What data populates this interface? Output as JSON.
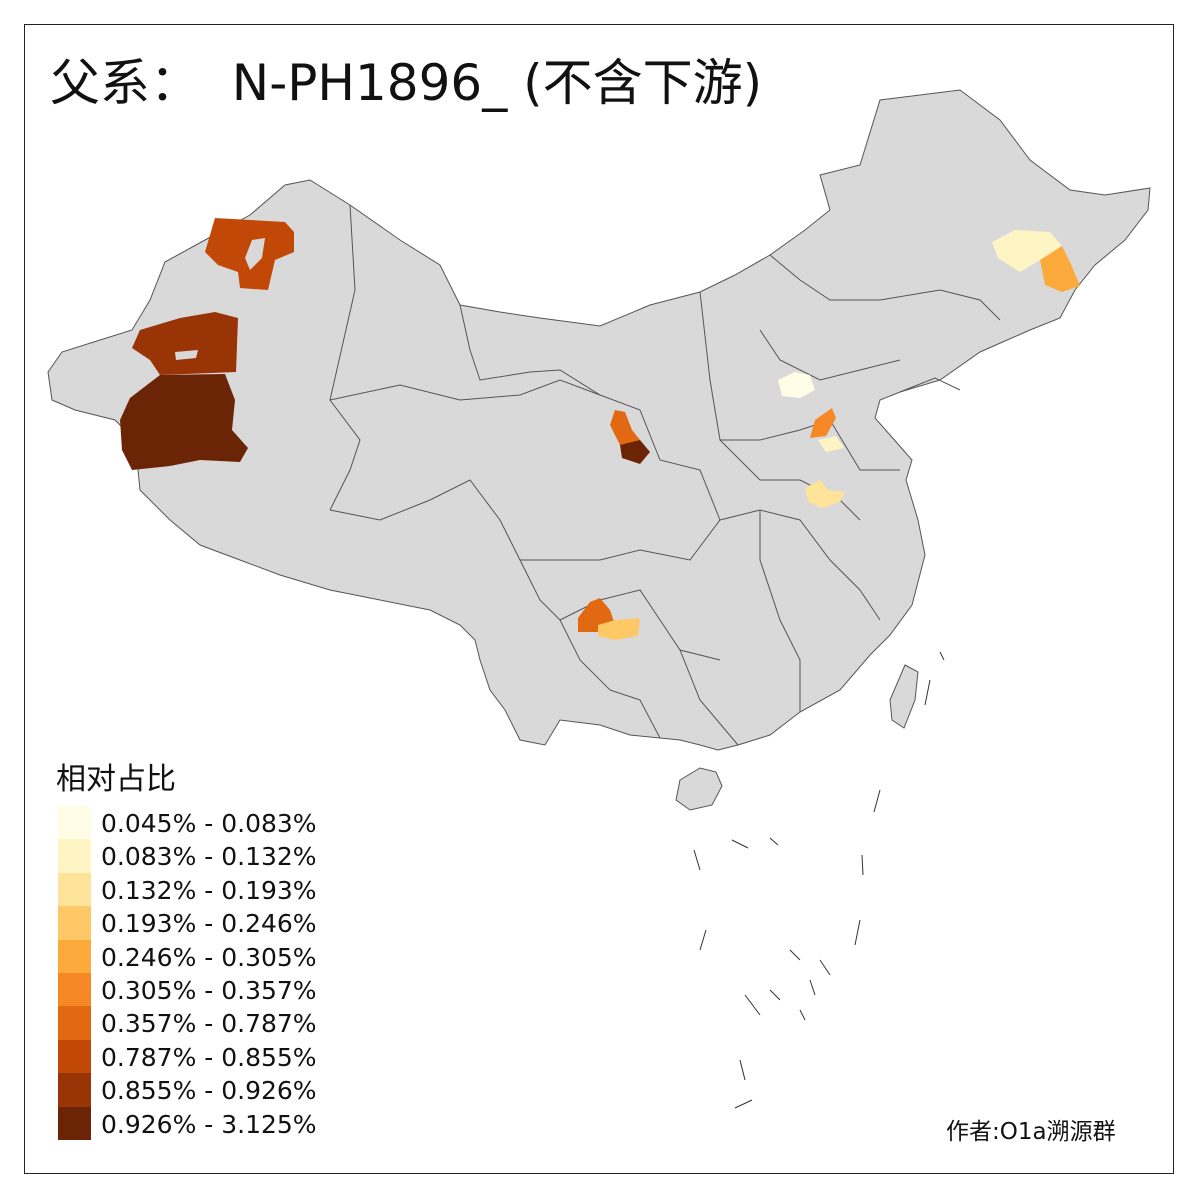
{
  "title": "父系：  N-PH1896_ (不含下游)",
  "legend": {
    "title": "相对占比",
    "items": [
      {
        "label": "0.045% - 0.083%",
        "color": "#fffde6"
      },
      {
        "label": "0.083% - 0.132%",
        "color": "#fff5c4"
      },
      {
        "label": "0.132% - 0.193%",
        "color": "#fee39a"
      },
      {
        "label": "0.193% - 0.246%",
        "color": "#fec866"
      },
      {
        "label": "0.246% - 0.305%",
        "color": "#fdaa3d"
      },
      {
        "label": "0.305% - 0.357%",
        "color": "#f68925"
      },
      {
        "label": "0.357% - 0.787%",
        "color": "#e36812"
      },
      {
        "label": "0.787% - 0.855%",
        "color": "#c24808"
      },
      {
        "label": "0.855% - 0.926%",
        "color": "#983406"
      },
      {
        "label": "0.926% - 3.125%",
        "color": "#6b2506"
      }
    ]
  },
  "credit": "作者:O1a溯源群",
  "map": {
    "base_color": "#d9d9d9",
    "border_color": "#555555"
  }
}
